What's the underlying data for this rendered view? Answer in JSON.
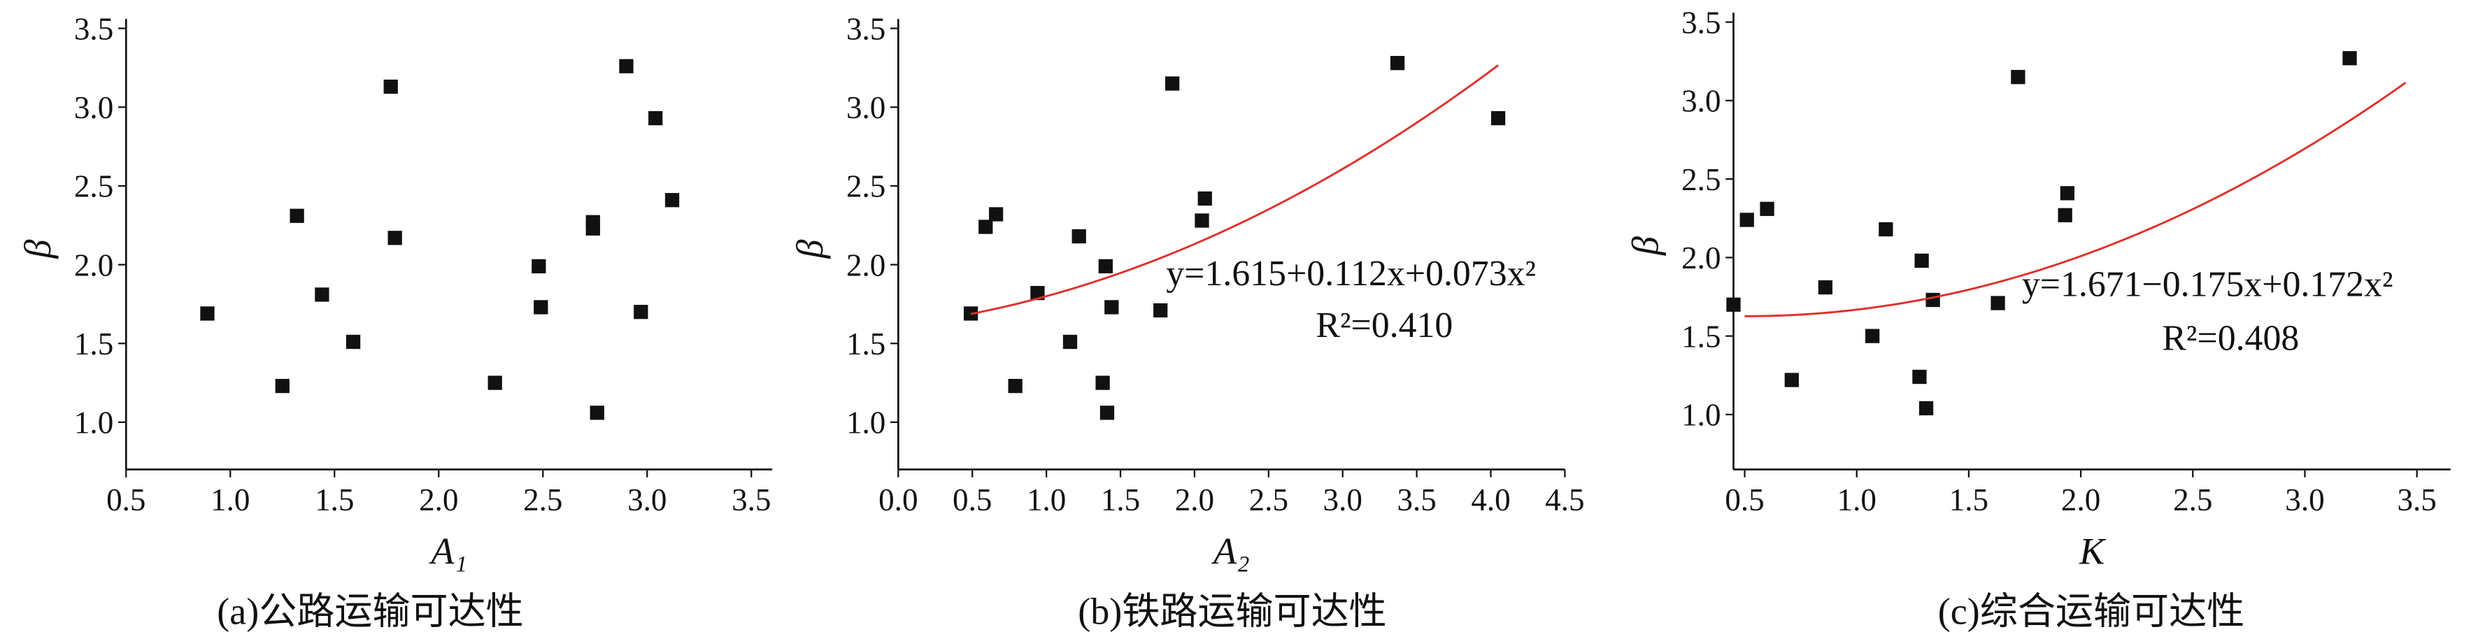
{
  "chart_data": [
    {
      "type": "scatter",
      "title": "(a)公路运输可达性",
      "x_label": "A₁",
      "y_label": "β",
      "x": [
        0.89,
        1.25,
        1.32,
        1.44,
        1.59,
        1.77,
        1.79,
        2.27,
        2.48,
        2.49,
        2.74,
        2.74,
        2.76,
        2.9,
        2.97,
        3.04,
        3.12
      ],
      "series": [
        {
          "color": "#111111",
          "values": [
            1.69,
            1.23,
            2.31,
            1.81,
            1.51,
            3.13,
            2.17,
            1.25,
            1.99,
            1.73,
            2.27,
            2.23,
            1.06,
            3.26,
            1.7,
            2.93,
            2.41
          ]
        }
      ],
      "xlim": [
        0.5,
        3.6
      ],
      "ylim": [
        0.7,
        3.5
      ],
      "xticks": [
        0.5,
        {
          "value": 1,
          "label": "1.0"
        },
        1.5,
        {
          "value": 2,
          "label": "2.0"
        },
        2.5,
        {
          "value": 3,
          "label": "3.0"
        },
        3.5
      ],
      "yticks": [
        {
          "value": 1,
          "label": "1.0"
        },
        1.5,
        {
          "value": 2,
          "label": "2.0"
        },
        2.5,
        {
          "value": 3,
          "label": "3.0"
        },
        3.5
      ]
    },
    {
      "type": "scatter",
      "title": "(b)铁路运输可达性",
      "x_label": "A₂",
      "y_label": "β",
      "x": [
        0.49,
        0.59,
        0.66,
        0.79,
        0.94,
        1.16,
        1.22,
        1.38,
        1.4,
        1.41,
        1.44,
        1.77,
        1.85,
        2.05,
        2.07,
        3.37,
        4.05
      ],
      "series": [
        {
          "color": "#111111",
          "values": [
            1.69,
            2.24,
            2.32,
            1.23,
            1.82,
            1.51,
            2.18,
            1.25,
            1.99,
            1.06,
            1.73,
            1.71,
            3.15,
            2.28,
            2.42,
            3.28,
            2.93
          ]
        }
      ],
      "xlim": [
        0,
        4.5
      ],
      "ylim": [
        0.7,
        3.5
      ],
      "xticks": [
        {
          "value": 0,
          "label": "0.0"
        },
        0.5,
        {
          "value": 1,
          "label": "1.0"
        },
        1.5,
        {
          "value": 2,
          "label": "2.0"
        },
        2.5,
        {
          "value": 3,
          "label": "3.0"
        },
        3.5,
        {
          "value": 4,
          "label": "4.0"
        },
        4.5
      ],
      "yticks": [
        {
          "value": 1,
          "label": "1.0"
        },
        1.5,
        {
          "value": 2,
          "label": "2.0"
        },
        2.5,
        {
          "value": 3,
          "label": "3.0"
        },
        3.5
      ],
      "fit": {
        "color": "#e0302c",
        "coefficients": [
          1.615,
          0.112,
          0.073
        ],
        "x_range": [
          0.49,
          4.05
        ],
        "equation": "y=1.615+0.112x+0.073x²",
        "r2": "R²=0.410"
      }
    },
    {
      "type": "scatter",
      "title": "(c)综合运输可达性",
      "x_label": "K",
      "y_label": "β",
      "x": [
        0.45,
        0.51,
        0.6,
        0.71,
        0.86,
        1.07,
        1.13,
        1.28,
        1.29,
        1.31,
        1.34,
        1.63,
        1.72,
        1.93,
        1.94,
        3.2
      ],
      "series": [
        {
          "color": "#111111",
          "values": [
            1.7,
            2.24,
            2.31,
            1.22,
            1.81,
            1.5,
            2.18,
            1.24,
            1.98,
            1.04,
            1.73,
            1.71,
            3.15,
            2.27,
            2.41,
            3.27
          ]
        }
      ],
      "xlim": [
        0.45,
        3.65
      ],
      "ylim": [
        0.65,
        3.5
      ],
      "xticks": [
        0.5,
        {
          "value": 1,
          "label": "1.0"
        },
        1.5,
        {
          "value": 2,
          "label": "2.0"
        },
        2.5,
        {
          "value": 3,
          "label": "3.0"
        },
        3.5
      ],
      "yticks": [
        {
          "value": 1,
          "label": "1.0"
        },
        1.5,
        {
          "value": 2,
          "label": "2.0"
        },
        2.5,
        {
          "value": 3,
          "label": "3.0"
        },
        3.5
      ],
      "fit": {
        "color": "#e0302c",
        "coefficients": [
          1.671,
          -0.175,
          0.172
        ],
        "x_range": [
          0.5,
          3.45
        ],
        "equation": "y=1.671−0.175x+0.172x²",
        "r2": "R²=0.408"
      }
    }
  ]
}
